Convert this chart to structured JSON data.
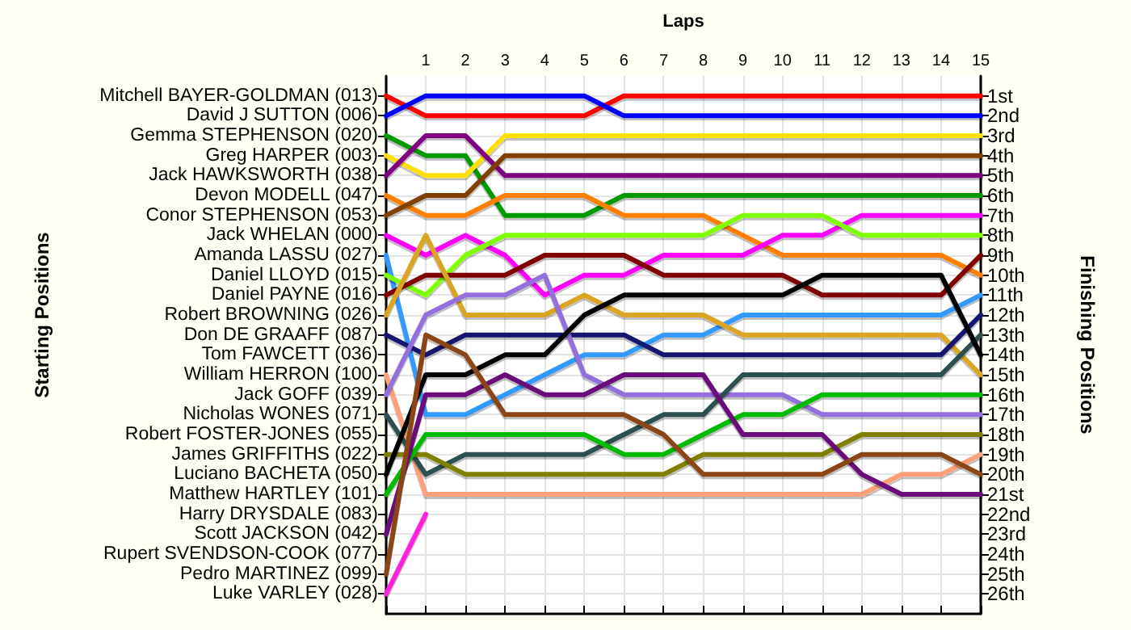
{
  "chart_data": {
    "type": "line",
    "xlabel": "Laps",
    "annotations": [
      "Starting Positions"
    ],
    "y2label": "Finishing Positions",
    "x": [
      0,
      1,
      2,
      3,
      4,
      5,
      6,
      7,
      8,
      9,
      10,
      11,
      12,
      13,
      14,
      15
    ],
    "xlim": [
      0,
      15
    ],
    "xticks": [
      {
        "value": 0,
        "label": null
      },
      1,
      2,
      3,
      4,
      5,
      6,
      7,
      8,
      9,
      10,
      11,
      12,
      13,
      14,
      15
    ],
    "y_categories": [
      "Mitchell BAYER-GOLDMAN (013)",
      "David J SUTTON (006)",
      "Gemma STEPHENSON (020)",
      "Greg HARPER (003)",
      "Jack HAWKSWORTH (038)",
      "Devon MODELL (047)",
      "Conor STEPHENSON (053)",
      "Jack WHELAN (000)",
      "Amanda LASSU (027)",
      "Daniel LLOYD (015)",
      "Daniel PAYNE (016)",
      "Robert BROWNING (026)",
      "Don DE GRAAFF (087)",
      "Tom FAWCETT (036)",
      "William HERRON (100)",
      "Jack GOFF (039)",
      "Nicholas WONES (071)",
      "Robert FOSTER-JONES (055)",
      "James GRIFFITHS (022)",
      "Luciano BACHETA (050)",
      "Matthew HARTLEY (101)",
      "Harry DRYSDALE (083)",
      "Scott JACKSON (042)",
      "Rupert SVENDSON-COOK (077)",
      "Pedro MARTINEZ (099)",
      "Luke VARLEY (028)"
    ],
    "y2lim": [
      27,
      0
    ],
    "y2ticks": [
      {
        "value": 1,
        "label": "1st"
      },
      {
        "value": 2,
        "label": "2nd"
      },
      {
        "value": 3,
        "label": "3rd"
      },
      {
        "value": 4,
        "label": "4th"
      },
      {
        "value": 5,
        "label": "5th"
      },
      {
        "value": 6,
        "label": "6th"
      },
      {
        "value": 7,
        "label": "7th"
      },
      {
        "value": 8,
        "label": "8th"
      },
      {
        "value": 9,
        "label": "9th"
      },
      {
        "value": 10,
        "label": "10th"
      },
      {
        "value": 11,
        "label": "11th"
      },
      {
        "value": 12,
        "label": "12th"
      },
      {
        "value": 13,
        "label": "13th"
      },
      {
        "value": 14,
        "label": "14th"
      },
      {
        "value": 15,
        "label": "15th"
      },
      {
        "value": 16,
        "label": "16th"
      },
      {
        "value": 17,
        "label": "17th"
      },
      {
        "value": 18,
        "label": "18th"
      },
      {
        "value": 19,
        "label": "19th"
      },
      {
        "value": 20,
        "label": "20th"
      },
      {
        "value": 21,
        "label": "21st"
      },
      {
        "value": 22,
        "label": "22nd"
      },
      {
        "value": 23,
        "label": "23rd"
      },
      {
        "value": 24,
        "label": "24th"
      },
      {
        "value": 25,
        "label": "25th"
      },
      {
        "value": 26,
        "label": "26th"
      }
    ],
    "grid": true,
    "marker": "none",
    "line_style": "solid",
    "series": [
      {
        "axis": "y2",
        "color": "#ff0000",
        "values": [
          1,
          2,
          2,
          2,
          2,
          2,
          1,
          1,
          1,
          1,
          1,
          1,
          1,
          1,
          1,
          1
        ]
      },
      {
        "axis": "y2",
        "color": "#0000ff",
        "values": [
          2,
          1,
          1,
          1,
          1,
          1,
          2,
          2,
          2,
          2,
          2,
          2,
          2,
          2,
          2,
          2
        ]
      },
      {
        "axis": "y2",
        "color": "#009900",
        "values": [
          3,
          4,
          4,
          7,
          7,
          7,
          6,
          6,
          6,
          6,
          6,
          6,
          6,
          6,
          6,
          6
        ]
      },
      {
        "axis": "y2",
        "color": "#ffe000",
        "values": [
          4,
          5,
          5,
          3,
          3,
          3,
          3,
          3,
          3,
          3,
          3,
          3,
          3,
          3,
          3,
          3
        ]
      },
      {
        "axis": "y2",
        "color": "#800080",
        "values": [
          5,
          3,
          3,
          5,
          5,
          5,
          5,
          5,
          5,
          5,
          5,
          5,
          5,
          5,
          5,
          5
        ]
      },
      {
        "axis": "y2",
        "color": "#ff8000",
        "values": [
          6,
          7,
          7,
          6,
          6,
          6,
          7,
          7,
          7,
          8,
          9,
          9,
          9,
          9,
          9,
          10
        ]
      },
      {
        "axis": "y2",
        "color": "#804000",
        "values": [
          7,
          6,
          6,
          4,
          4,
          4,
          4,
          4,
          4,
          4,
          4,
          4,
          4,
          4,
          4,
          4
        ]
      },
      {
        "axis": "y2",
        "color": "#ff00ff",
        "values": [
          8,
          9,
          8,
          9,
          11,
          10,
          10,
          9,
          9,
          9,
          8,
          8,
          7,
          7,
          7,
          7
        ]
      },
      {
        "axis": "y2",
        "color": "#3399ff",
        "values": [
          9,
          17,
          17,
          16,
          15,
          14,
          14,
          13,
          13,
          12,
          12,
          12,
          12,
          12,
          12,
          11
        ]
      },
      {
        "axis": "y2",
        "color": "#80ff00",
        "values": [
          10,
          11,
          9,
          8,
          8,
          8,
          8,
          8,
          8,
          7,
          7,
          7,
          8,
          8,
          8,
          8
        ]
      },
      {
        "axis": "y2",
        "color": "#800000",
        "values": [
          11,
          10,
          10,
          10,
          9,
          9,
          9,
          10,
          10,
          10,
          10,
          11,
          11,
          11,
          11,
          9
        ]
      },
      {
        "axis": "y2",
        "color": "#daa520",
        "values": [
          12,
          8,
          12,
          12,
          12,
          11,
          12,
          12,
          12,
          13,
          13,
          13,
          13,
          13,
          13,
          15
        ]
      },
      {
        "axis": "y2",
        "color": "#191970",
        "values": [
          13,
          14,
          13,
          13,
          13,
          13,
          13,
          14,
          14,
          14,
          14,
          14,
          14,
          14,
          14,
          12
        ]
      },
      {
        "axis": "y2",
        "color": "#ffa07a",
        "values": [
          15,
          21,
          21,
          21,
          21,
          21,
          21,
          21,
          21,
          21,
          21,
          21,
          21,
          20,
          20,
          19
        ]
      },
      {
        "axis": "y2",
        "color": "#9370db",
        "values": [
          16,
          12,
          11,
          11,
          10,
          15,
          16,
          16,
          16,
          16,
          16,
          17,
          17,
          17,
          17,
          17
        ]
      },
      {
        "axis": "y2",
        "color": "#2f4f4f",
        "values": [
          17,
          20,
          19,
          19,
          19,
          19,
          18,
          17,
          17,
          15,
          15,
          15,
          15,
          15,
          15,
          13
        ]
      },
      {
        "axis": "y2",
        "color": "#808000",
        "values": [
          19,
          19,
          20,
          20,
          20,
          20,
          20,
          20,
          19,
          19,
          19,
          19,
          18,
          18,
          18,
          18
        ]
      },
      {
        "axis": "y2",
        "color": "#000000",
        "values": [
          20,
          15,
          15,
          14,
          14,
          12,
          11,
          11,
          11,
          11,
          11,
          10,
          10,
          10,
          10,
          14
        ]
      },
      {
        "axis": "y2",
        "color": "#00bb00",
        "values": [
          21,
          18,
          18,
          18,
          18,
          18,
          19,
          19,
          18,
          17,
          17,
          16,
          16,
          16,
          16,
          16
        ]
      },
      {
        "axis": "y2",
        "color": "#6a0a7a",
        "values": [
          23,
          16,
          16,
          15,
          16,
          16,
          15,
          15,
          15,
          18,
          18,
          18,
          20,
          21,
          21,
          21
        ]
      },
      {
        "axis": "y2",
        "color": "#8b4513",
        "values": [
          25,
          13,
          14,
          17,
          17,
          17,
          17,
          18,
          20,
          20,
          20,
          20,
          19,
          19,
          19,
          20
        ]
      },
      {
        "axis": "y2",
        "color": "#ff22dd",
        "values": [
          26,
          22,
          null,
          null,
          null,
          null,
          null,
          null,
          null,
          null,
          null,
          null,
          null,
          null,
          null,
          null
        ]
      }
    ]
  }
}
